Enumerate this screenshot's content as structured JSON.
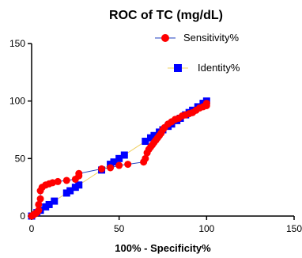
{
  "chart_data": {
    "type": "line",
    "title": "ROC of TC (mg/dL)",
    "xlabel": "100% - Specificity%",
    "ylabel": "",
    "xlim": [
      0,
      150
    ],
    "ylim": [
      0,
      150
    ],
    "xticks": [
      "0",
      "50",
      "100",
      "150"
    ],
    "yticks": [
      "0",
      "50",
      "100",
      "150"
    ],
    "grid": false,
    "legend_position": "top-right",
    "series": [
      {
        "name": "Sensitivity%",
        "color": "#ff0000",
        "line_color": "#1f3fbf",
        "marker": "circle",
        "x": [
          0,
          1,
          2,
          3,
          4,
          4,
          5,
          5,
          6,
          8,
          10,
          12,
          15,
          20,
          25,
          27,
          27,
          40,
          45,
          50,
          55,
          64,
          65,
          66,
          67,
          68,
          69,
          70,
          71,
          72,
          73,
          74,
          75,
          76,
          78,
          80,
          82,
          84,
          86,
          88,
          90,
          92,
          94,
          96,
          98,
          100,
          100
        ],
        "y": [
          0,
          1,
          2,
          3,
          5,
          10,
          15,
          22,
          25,
          27,
          28,
          29,
          30,
          31,
          32,
          35,
          37,
          41,
          42,
          44,
          45,
          47,
          50,
          55,
          58,
          60,
          62,
          64,
          66,
          68,
          70,
          72,
          75,
          77,
          80,
          82,
          84,
          85,
          87,
          88,
          89,
          90,
          92,
          94,
          95,
          96,
          98
        ]
      },
      {
        "name": "Identity%",
        "color": "#0000ff",
        "line_color": "#f0d060",
        "marker": "square",
        "x": [
          0,
          3,
          5,
          8,
          10,
          13,
          20,
          22,
          25,
          27,
          40,
          45,
          47,
          50,
          53,
          65,
          68,
          70,
          73,
          75,
          78,
          80,
          83,
          85,
          88,
          90,
          92,
          95,
          98,
          100
        ],
        "y": [
          0,
          3,
          5,
          8,
          10,
          13,
          20,
          22,
          25,
          27,
          40,
          45,
          47,
          50,
          53,
          65,
          68,
          70,
          73,
          75,
          78,
          80,
          83,
          85,
          88,
          90,
          92,
          95,
          98,
          100
        ]
      }
    ]
  }
}
